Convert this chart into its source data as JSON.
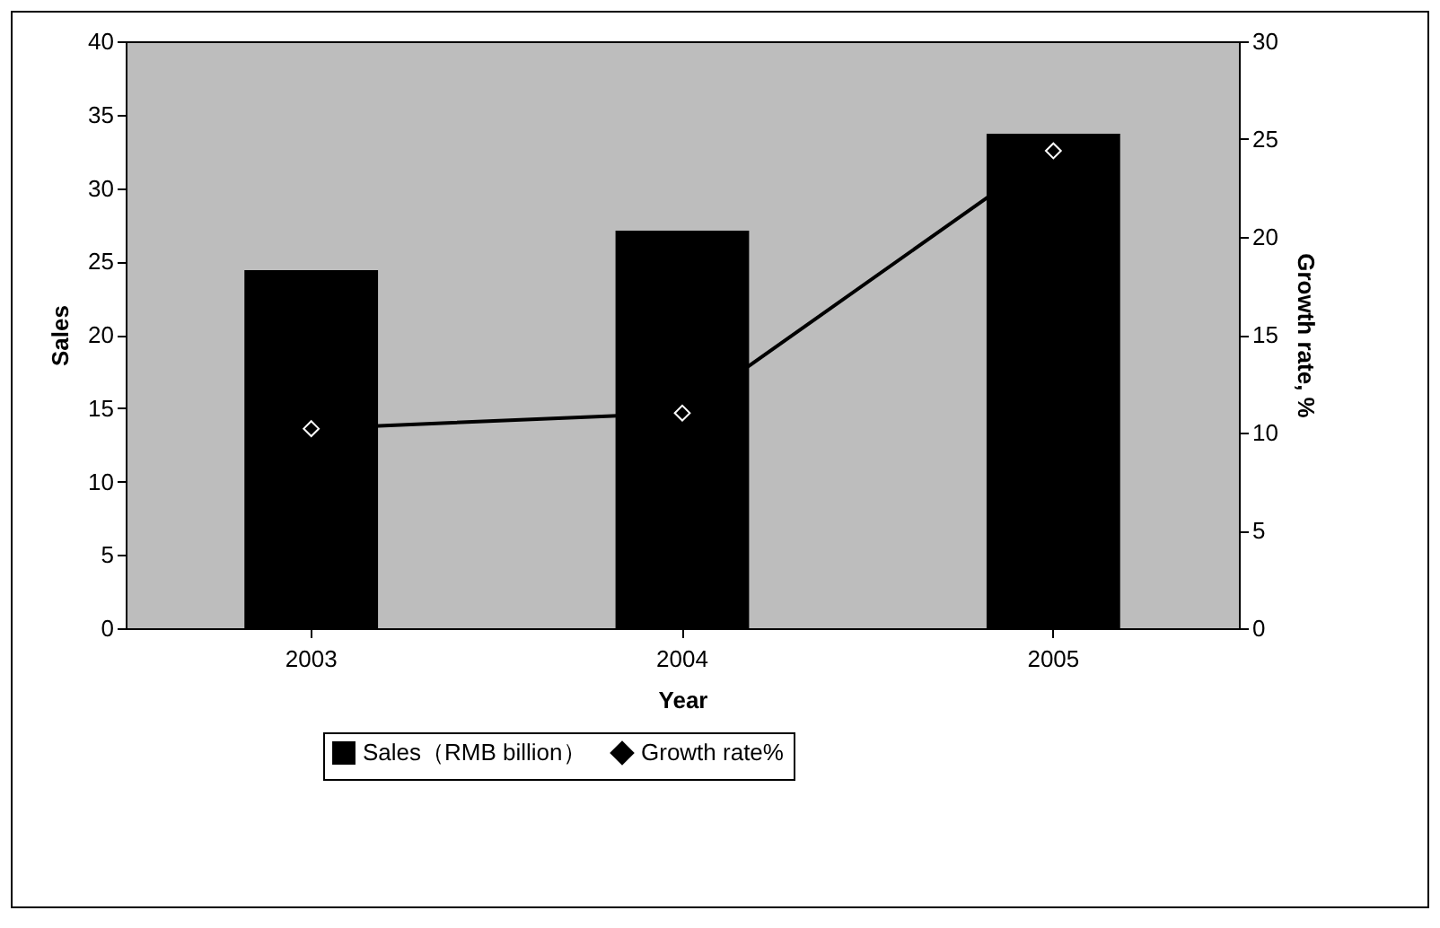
{
  "chart_data": {
    "type": "bar",
    "xlabel": "Year",
    "ylabel": "Sales",
    "y2label": "Growth rate, %",
    "categories": [
      "2003",
      "2004",
      "2005"
    ],
    "series": [
      {
        "name": "Sales（RMB billion）",
        "color": "#000000",
        "values": [
          24.4,
          27.1,
          33.7
        ]
      },
      {
        "name": "Growth rate%",
        "type": "line",
        "axis": "y2",
        "color": "#000000",
        "marker": "diamond",
        "values": [
          10.2,
          11,
          24.4
        ]
      }
    ],
    "ylim": [
      0,
      40
    ],
    "yticks": [
      0,
      5,
      10,
      15,
      20,
      25,
      30,
      35,
      40
    ],
    "y2lim": [
      0,
      30
    ],
    "y2ticks": [
      0,
      5,
      10,
      15,
      20,
      25,
      30
    ],
    "grid": false,
    "legend": "bottom"
  }
}
